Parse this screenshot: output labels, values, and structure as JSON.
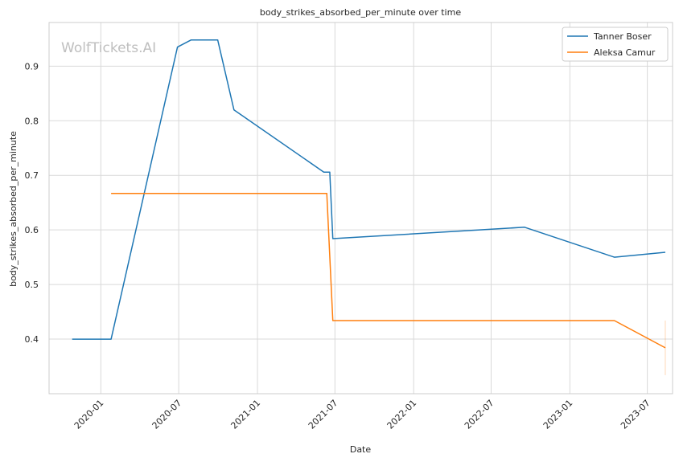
{
  "chart_data": {
    "type": "line",
    "title": "body_strikes_absorbed_per_minute over time",
    "xlabel": "Date",
    "ylabel": "body_strikes_absorbed_per_minute",
    "watermark": "WolfTickets.AI",
    "x_ticks": [
      "2020-01",
      "2020-07",
      "2021-01",
      "2021-07",
      "2022-01",
      "2022-07",
      "2023-01",
      "2023-07"
    ],
    "y_ticks": [
      0.4,
      0.5,
      0.6,
      0.7,
      0.8,
      0.9
    ],
    "xlim": [
      "2019-09-02",
      "2023-08-29"
    ],
    "ylim": [
      0.3,
      0.98
    ],
    "grid": true,
    "legend_position": "top-right",
    "colors": {
      "Tanner Boser": "#1f77b4",
      "Aleksa Camur": "#ff7f0e",
      "grid": "#d9d9d9",
      "frame": "#cccccc"
    },
    "series": [
      {
        "name": "Tanner Boser",
        "points": [
          [
            "2019-10-26",
            0.4
          ],
          [
            "2020-01-25",
            0.4
          ],
          [
            "2020-06-28",
            0.935
          ],
          [
            "2020-07-30",
            0.948
          ],
          [
            "2020-09-30",
            0.948
          ],
          [
            "2020-11-07",
            0.82
          ],
          [
            "2021-06-05",
            0.706
          ],
          [
            "2021-06-19",
            0.706
          ],
          [
            "2021-06-26",
            0.584
          ],
          [
            "2022-09-17",
            0.605
          ],
          [
            "2023-04-15",
            0.55
          ],
          [
            "2023-08-12",
            0.559
          ]
        ]
      },
      {
        "name": "Aleksa Camur",
        "points": [
          [
            "2020-01-25",
            0.667
          ],
          [
            "2021-06-12",
            0.667
          ],
          [
            "2021-06-26",
            0.434
          ],
          [
            "2023-04-15",
            0.434
          ],
          [
            "2023-08-12",
            0.384
          ]
        ],
        "error_bar": {
          "x": "2023-08-12",
          "low": 0.334,
          "high": 0.434
        }
      }
    ]
  }
}
